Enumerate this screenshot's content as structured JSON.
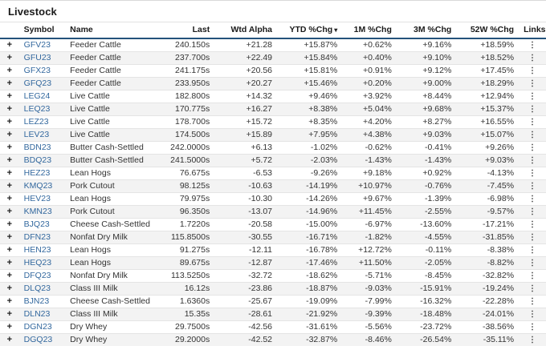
{
  "page": {
    "title": "Livestock"
  },
  "colors": {
    "positive": "#3d9150",
    "negative": "#c94545",
    "symbol_link": "#33689e",
    "header_underline": "#24527b",
    "alt_row_bg": "#f3f3f3"
  },
  "icons": {
    "expand_plus": "+",
    "sort_desc_caret": "▾",
    "links_kebab": "⋮"
  },
  "table": {
    "columns": [
      {
        "key": "plus",
        "label": "",
        "align": "center"
      },
      {
        "key": "symbol",
        "label": "Symbol",
        "align": "left"
      },
      {
        "key": "name",
        "label": "Name",
        "align": "left"
      },
      {
        "key": "last",
        "label": "Last",
        "align": "right"
      },
      {
        "key": "wtd_alpha",
        "label": "Wtd Alpha",
        "align": "right"
      },
      {
        "key": "ytd",
        "label": "YTD %Chg",
        "align": "right",
        "sorted_desc": true
      },
      {
        "key": "m1",
        "label": "1M %Chg",
        "align": "right"
      },
      {
        "key": "m3",
        "label": "3M %Chg",
        "align": "right"
      },
      {
        "key": "w52",
        "label": "52W %Chg",
        "align": "right"
      },
      {
        "key": "links",
        "label": "Links",
        "align": "center"
      }
    ],
    "rows": [
      {
        "symbol": "GFV23",
        "name": "Feeder Cattle",
        "last": "240.150s",
        "wtd_alpha": "+21.28",
        "ytd": "+15.87%",
        "m1": "+0.62%",
        "m3": "+9.16%",
        "w52": "+18.59%"
      },
      {
        "symbol": "GFU23",
        "name": "Feeder Cattle",
        "last": "237.700s",
        "wtd_alpha": "+22.49",
        "ytd": "+15.84%",
        "m1": "+0.40%",
        "m3": "+9.10%",
        "w52": "+18.52%"
      },
      {
        "symbol": "GFX23",
        "name": "Feeder Cattle",
        "last": "241.175s",
        "wtd_alpha": "+20.56",
        "ytd": "+15.81%",
        "m1": "+0.91%",
        "m3": "+9.12%",
        "w52": "+17.45%"
      },
      {
        "symbol": "GFQ23",
        "name": "Feeder Cattle",
        "last": "233.950s",
        "wtd_alpha": "+20.27",
        "ytd": "+15.46%",
        "m1": "+0.20%",
        "m3": "+9.00%",
        "w52": "+18.29%"
      },
      {
        "symbol": "LEG24",
        "name": "Live Cattle",
        "last": "182.800s",
        "wtd_alpha": "+14.32",
        "ytd": "+9.46%",
        "m1": "+3.92%",
        "m3": "+8.44%",
        "w52": "+12.94%"
      },
      {
        "symbol": "LEQ23",
        "name": "Live Cattle",
        "last": "170.775s",
        "wtd_alpha": "+16.27",
        "ytd": "+8.38%",
        "m1": "+5.04%",
        "m3": "+9.68%",
        "w52": "+15.37%"
      },
      {
        "symbol": "LEZ23",
        "name": "Live Cattle",
        "last": "178.700s",
        "wtd_alpha": "+15.72",
        "ytd": "+8.35%",
        "m1": "+4.20%",
        "m3": "+8.27%",
        "w52": "+16.55%"
      },
      {
        "symbol": "LEV23",
        "name": "Live Cattle",
        "last": "174.500s",
        "wtd_alpha": "+15.89",
        "ytd": "+7.95%",
        "m1": "+4.38%",
        "m3": "+9.03%",
        "w52": "+15.07%"
      },
      {
        "symbol": "BDN23",
        "name": "Butter Cash-Settled",
        "last": "242.0000s",
        "wtd_alpha": "+6.13",
        "ytd": "-1.02%",
        "m1": "-0.62%",
        "m3": "-0.41%",
        "w52": "+9.26%"
      },
      {
        "symbol": "BDQ23",
        "name": "Butter Cash-Settled",
        "last": "241.5000s",
        "wtd_alpha": "+5.72",
        "ytd": "-2.03%",
        "m1": "-1.43%",
        "m3": "-1.43%",
        "w52": "+9.03%"
      },
      {
        "symbol": "HEZ23",
        "name": "Lean Hogs",
        "last": "76.675s",
        "wtd_alpha": "-6.53",
        "ytd": "-9.26%",
        "m1": "+9.18%",
        "m3": "+0.92%",
        "w52": "-4.13%"
      },
      {
        "symbol": "KMQ23",
        "name": "Pork Cutout",
        "last": "98.125s",
        "wtd_alpha": "-10.63",
        "ytd": "-14.19%",
        "m1": "+10.97%",
        "m3": "-0.76%",
        "w52": "-7.45%"
      },
      {
        "symbol": "HEV23",
        "name": "Lean Hogs",
        "last": "79.975s",
        "wtd_alpha": "-10.30",
        "ytd": "-14.26%",
        "m1": "+9.67%",
        "m3": "-1.39%",
        "w52": "-6.98%"
      },
      {
        "symbol": "KMN23",
        "name": "Pork Cutout",
        "last": "96.350s",
        "wtd_alpha": "-13.07",
        "ytd": "-14.96%",
        "m1": "+11.45%",
        "m3": "-2.55%",
        "w52": "-9.57%"
      },
      {
        "symbol": "BJQ23",
        "name": "Cheese Cash-Settled",
        "last": "1.7220s",
        "wtd_alpha": "-20.58",
        "ytd": "-15.00%",
        "m1": "-6.97%",
        "m3": "-13.60%",
        "w52": "-17.21%"
      },
      {
        "symbol": "DFN23",
        "name": "Nonfat Dry Milk",
        "last": "115.8500s",
        "wtd_alpha": "-30.55",
        "ytd": "-16.71%",
        "m1": "-1.82%",
        "m3": "-4.55%",
        "w52": "-31.85%"
      },
      {
        "symbol": "HEN23",
        "name": "Lean Hogs",
        "last": "91.275s",
        "wtd_alpha": "-12.11",
        "ytd": "-16.78%",
        "m1": "+12.72%",
        "m3": "-0.11%",
        "w52": "-8.38%"
      },
      {
        "symbol": "HEQ23",
        "name": "Lean Hogs",
        "last": "89.675s",
        "wtd_alpha": "-12.87",
        "ytd": "-17.46%",
        "m1": "+11.50%",
        "m3": "-2.05%",
        "w52": "-8.82%"
      },
      {
        "symbol": "DFQ23",
        "name": "Nonfat Dry Milk",
        "last": "113.5250s",
        "wtd_alpha": "-32.72",
        "ytd": "-18.62%",
        "m1": "-5.71%",
        "m3": "-8.45%",
        "w52": "-32.82%"
      },
      {
        "symbol": "DLQ23",
        "name": "Class III Milk",
        "last": "16.12s",
        "wtd_alpha": "-23.86",
        "ytd": "-18.87%",
        "m1": "-9.03%",
        "m3": "-15.91%",
        "w52": "-19.24%"
      },
      {
        "symbol": "BJN23",
        "name": "Cheese Cash-Settled",
        "last": "1.6360s",
        "wtd_alpha": "-25.67",
        "ytd": "-19.09%",
        "m1": "-7.99%",
        "m3": "-16.32%",
        "w52": "-22.28%"
      },
      {
        "symbol": "DLN23",
        "name": "Class III Milk",
        "last": "15.35s",
        "wtd_alpha": "-28.61",
        "ytd": "-21.92%",
        "m1": "-9.39%",
        "m3": "-18.48%",
        "w52": "-24.01%"
      },
      {
        "symbol": "DGN23",
        "name": "Dry Whey",
        "last": "29.7500s",
        "wtd_alpha": "-42.56",
        "ytd": "-31.61%",
        "m1": "-5.56%",
        "m3": "-23.72%",
        "w52": "-38.56%"
      },
      {
        "symbol": "DGQ23",
        "name": "Dry Whey",
        "last": "29.2000s",
        "wtd_alpha": "-42.52",
        "ytd": "-32.87%",
        "m1": "-8.46%",
        "m3": "-26.54%",
        "w52": "-35.11%"
      }
    ]
  }
}
